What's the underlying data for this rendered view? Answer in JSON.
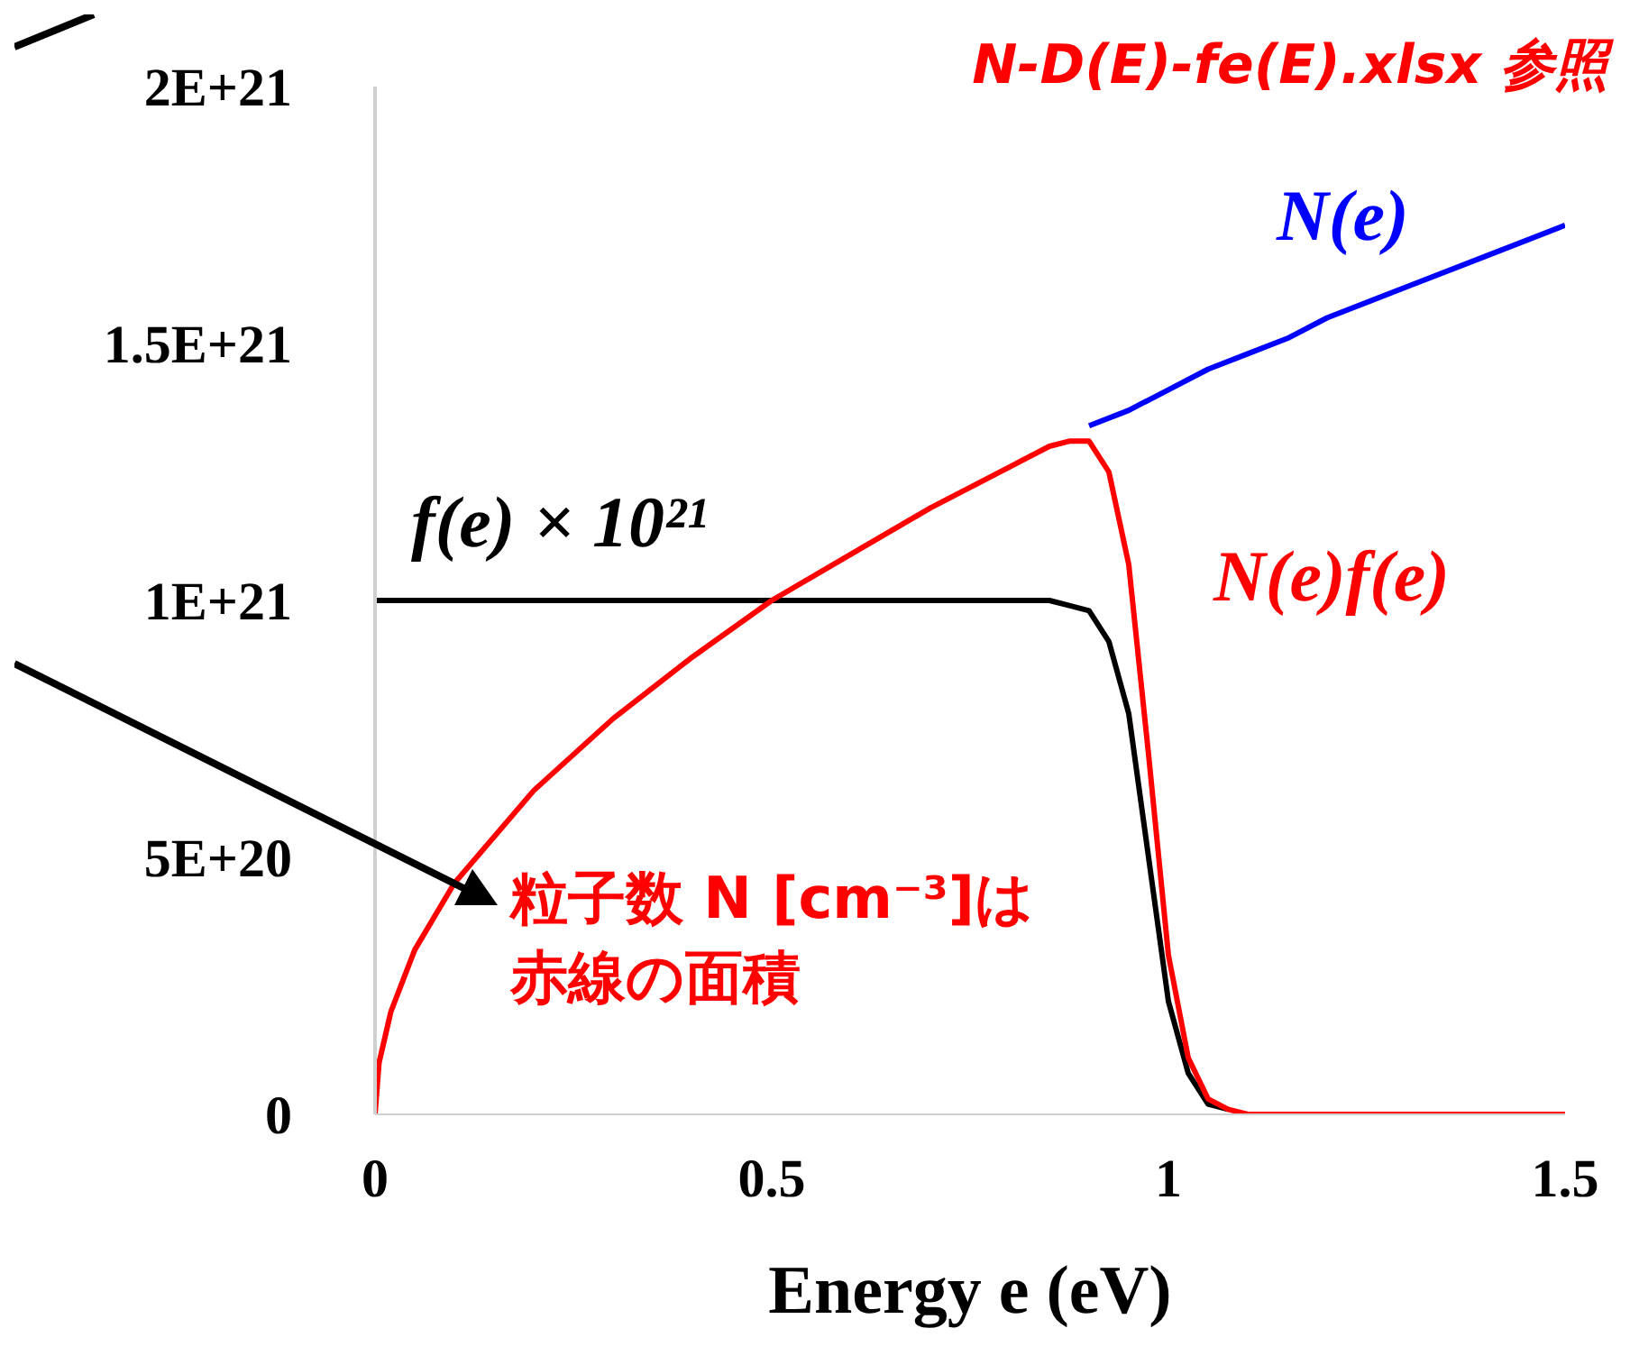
{
  "chart_data": {
    "type": "line",
    "xlabel": "Energy e (eV)",
    "xlim": [
      0,
      1.5
    ],
    "xticks": [
      0,
      0.5,
      1,
      1.5
    ],
    "ylim": [
      0,
      2e+21
    ],
    "yticks": [
      0,
      {
        "value": 5e+20,
        "label": "5E+20"
      },
      {
        "value": 1e+21,
        "label": "1E+21"
      },
      {
        "value": 1.5e+21,
        "label": "1.5E+21"
      },
      {
        "value": 2e+21,
        "label": "2E+21"
      }
    ],
    "annotations": [
      "N-D(E)-fe(E).xlsx 参照",
      "粒子数 N [cm⁻³]は赤線の面積"
    ],
    "series": [
      {
        "name": "N(e)",
        "color": "#0000ff",
        "x": [
          0.9,
          0.95,
          1.0,
          1.05,
          1.1,
          1.15,
          1.2,
          1.3,
          1.4,
          1.5
        ],
        "values": [
          1.34e+21,
          1.37e+21,
          1.41e+21,
          1.45e+21,
          1.48e+21,
          1.51e+21,
          1.55e+21,
          1.61e+21,
          1.67e+21,
          1.73e+21
        ]
      },
      {
        "name": "f(e) × 10²¹",
        "color": "#000000",
        "x": [
          0,
          0.8,
          0.85,
          0.875,
          0.9,
          0.925,
          0.95,
          0.975,
          1.0,
          1.025,
          1.05,
          1.075
        ],
        "values": [
          1e+21,
          1e+21,
          1e+21,
          9.9e+20,
          9.8e+20,
          9.2e+20,
          7.8e+20,
          5e+20,
          2.2e+20,
          8e+19,
          2e+19,
          1e+19
        ]
      },
      {
        "name": "N(e)f(e)",
        "color": "#ff0000",
        "x": [
          0,
          0.005,
          0.02,
          0.05,
          0.1,
          0.2,
          0.3,
          0.4,
          0.5,
          0.6,
          0.7,
          0.8,
          0.85,
          0.875,
          0.9,
          0.925,
          0.95,
          0.975,
          1.0,
          1.025,
          1.05,
          1.075,
          1.1,
          1.15,
          1.2,
          1.3,
          1.4,
          1.5
        ],
        "values": [
          0,
          1e+20,
          2e+20,
          3.2e+20,
          4.5e+20,
          6.3e+20,
          7.7e+20,
          8.9e+20,
          1e+21,
          1.09e+21,
          1.18e+21,
          1.26e+21,
          1.3e+21,
          1.31e+21,
          1.31e+21,
          1.25e+21,
          1.07e+21,
          7e+20,
          3.1e+20,
          1.1e+20,
          3e+19,
          1e+19,
          0,
          0,
          0,
          0,
          0,
          0
        ]
      }
    ]
  }
}
